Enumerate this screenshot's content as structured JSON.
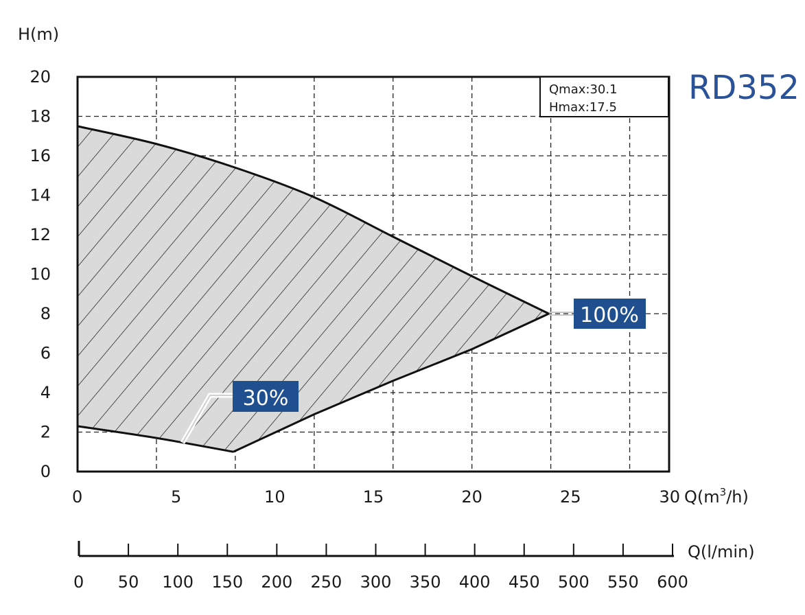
{
  "chart_data": {
    "type": "area",
    "ylabel": "H(m)",
    "xlabel": "Q(m",
    "xlabel_sup": "3",
    "xlabel_end": "/h)",
    "x2label": "Q(l/min)",
    "xlim": [
      0,
      30
    ],
    "ylim": [
      0,
      20
    ],
    "x2lim": [
      0,
      600
    ],
    "xticks": [
      "0",
      "5",
      "10",
      "15",
      "20",
      "25",
      "30"
    ],
    "yticks": [
      "0",
      "2",
      "4",
      "6",
      "8",
      "10",
      "12",
      "14",
      "16",
      "18",
      "20"
    ],
    "x2ticks": [
      "0",
      "50",
      "100",
      "150",
      "200",
      "250",
      "300",
      "350",
      "400",
      "450",
      "500",
      "550",
      "600"
    ],
    "grid": true,
    "model_label": "RD352",
    "info_lines": [
      "Qmax:30.1",
      "Hmax:17.5"
    ],
    "series": [
      {
        "name": "100%",
        "x": [
          0,
          4,
          8,
          12,
          16,
          20,
          23.9
        ],
        "y": [
          17.5,
          16.6,
          15.4,
          13.9,
          11.9,
          9.9,
          8.0
        ]
      },
      {
        "name": "30%",
        "x": [
          0,
          4,
          7.9
        ],
        "y": [
          2.3,
          1.7,
          1.0
        ]
      },
      {
        "name": "",
        "x": [
          7.9,
          12,
          16,
          20,
          23.9
        ],
        "y": [
          1.0,
          2.9,
          4.6,
          6.2,
          8.0
        ]
      }
    ],
    "fill_color": "#d9dad9",
    "badge_color": "#1f4f8f",
    "accent_color": "#2a5298"
  }
}
